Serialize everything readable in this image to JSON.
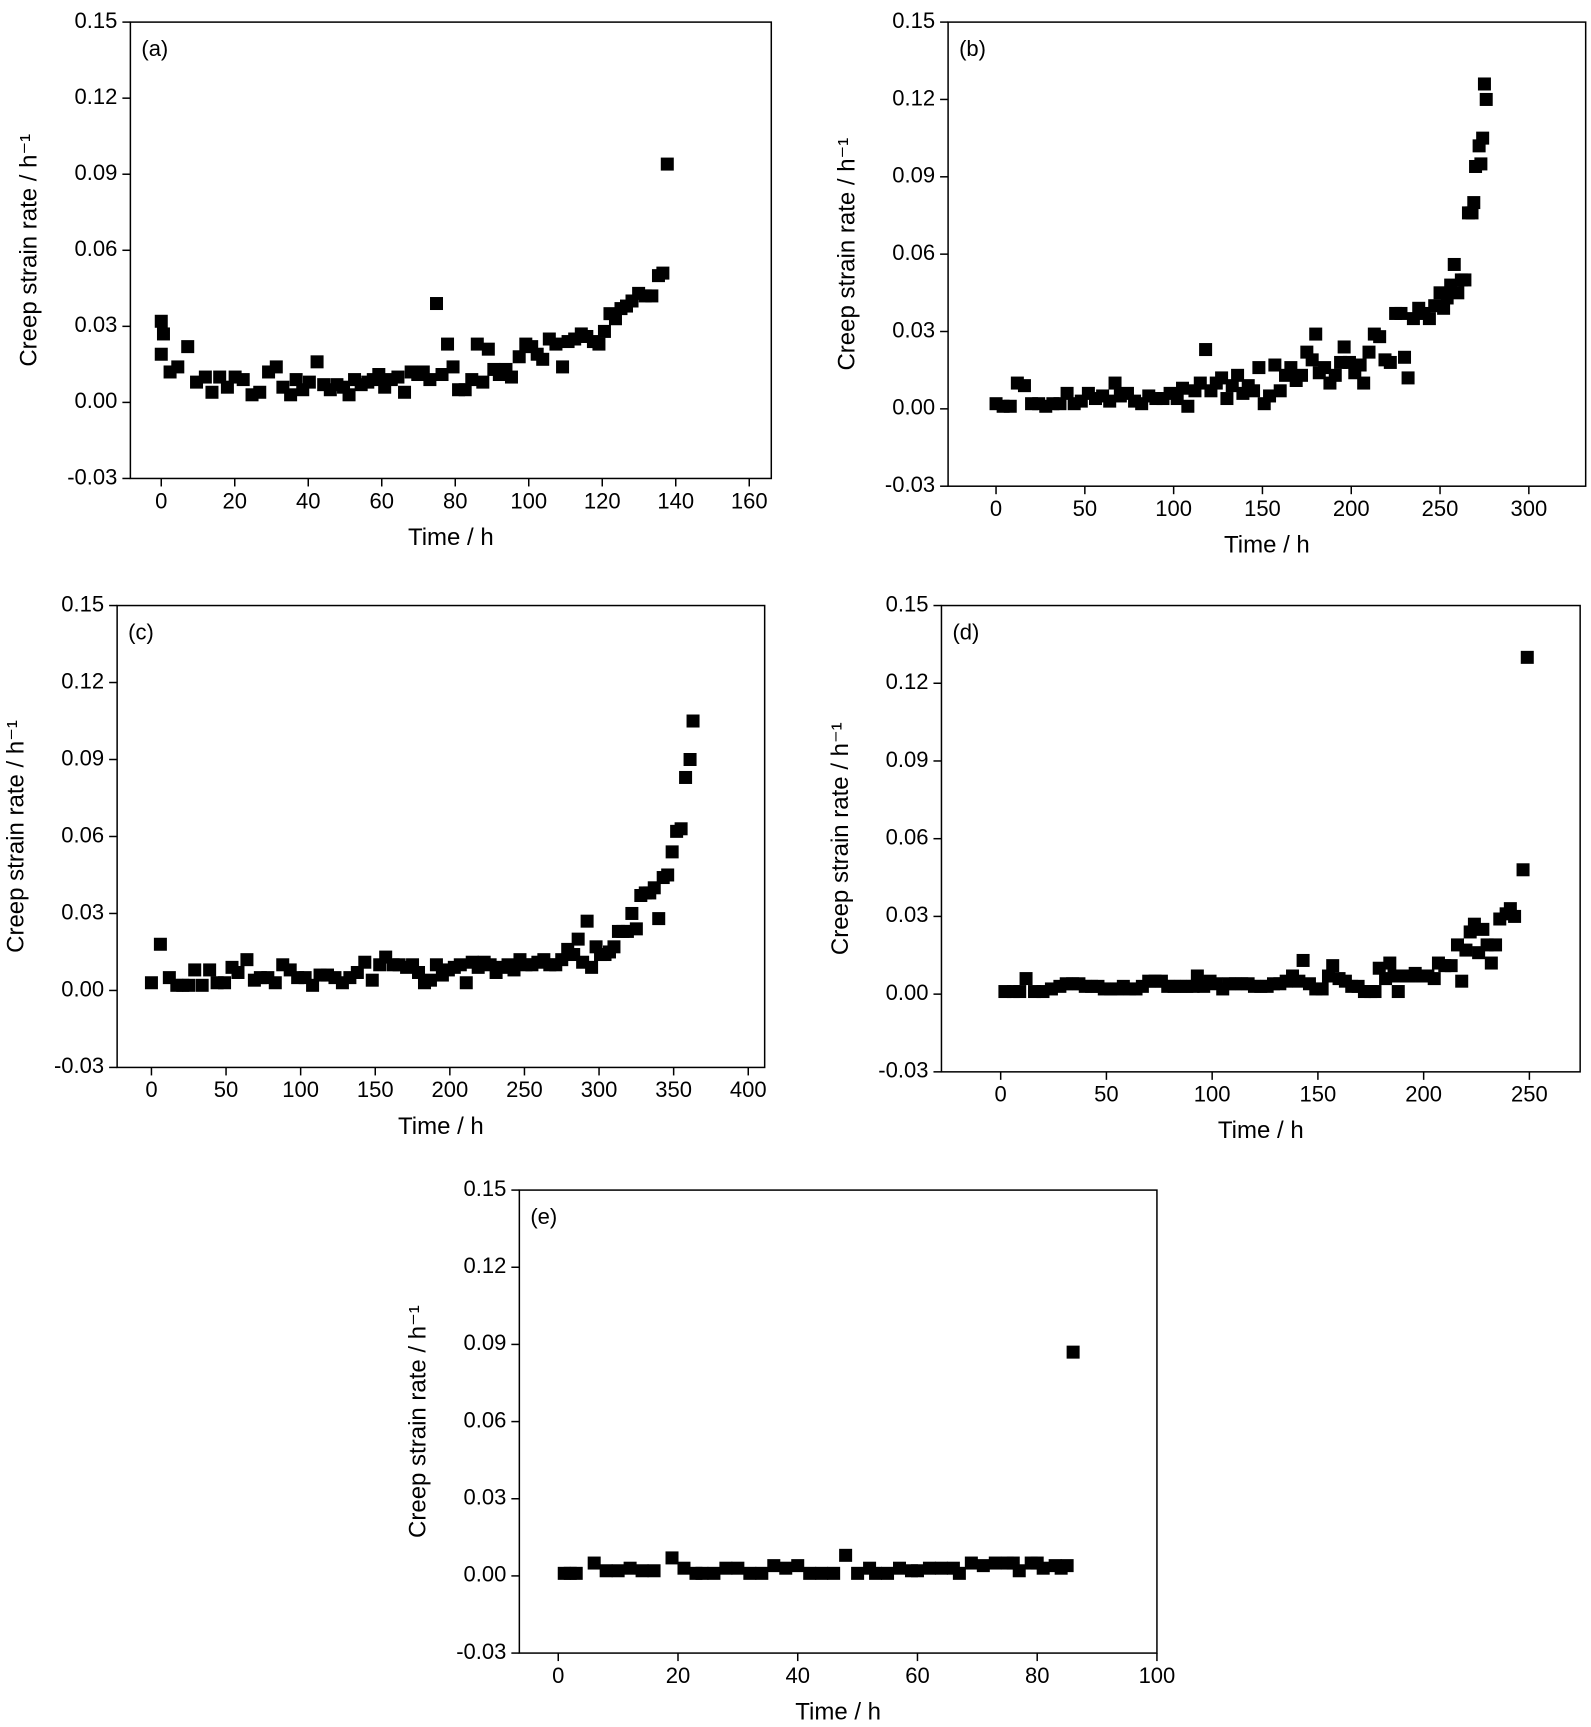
{
  "chart_data": [
    {
      "type": "scatter",
      "label": "(a)",
      "x_label": "Time / h",
      "y_label": "Creep strain rate / h⁻¹",
      "color": "#000000",
      "xlim": [
        -8.4,
        166
      ],
      "ylim": [
        -0.03,
        0.15
      ],
      "xticks": [
        0,
        20,
        40,
        60,
        80,
        100,
        120,
        140,
        160
      ],
      "yticks": [
        -0.03,
        {
          "value": 0,
          "label": "0.00"
        },
        0.03,
        0.06,
        0.09,
        0.12,
        0.15
      ],
      "x": [
        0,
        0,
        0.6,
        2.4,
        4.5,
        7.2,
        9.6,
        12,
        13.8,
        15.9,
        18,
        20.1,
        22.3,
        24.7,
        26.8,
        29.2,
        31.3,
        33.1,
        35.2,
        36.7,
        38.5,
        40.3,
        42.4,
        44.2,
        46,
        47.8,
        49.6,
        51.1,
        52.6,
        54.4,
        56.2,
        57.7,
        59.2,
        60.8,
        62.6,
        64.4,
        66.2,
        68,
        69.8,
        71.3,
        73.1,
        74.9,
        76.4,
        77.9,
        79.4,
        80.9,
        82.7,
        84.5,
        86,
        87.5,
        89,
        90.5,
        92,
        93.8,
        95.3,
        97.4,
        99.2,
        100.8,
        102.3,
        103.8,
        105.6,
        107.4,
        109.2,
        110.7,
        112.5,
        114.3,
        115.8,
        117.6,
        119.1,
        120.6,
        122.1,
        123.6,
        125.1,
        126.6,
        128.1,
        129.9,
        131.7,
        133.5,
        135.3,
        136.5,
        137.7
      ],
      "values": [
        0.032,
        0.019,
        0.027,
        0.012,
        0.014,
        0.022,
        0.008,
        0.01,
        0.004,
        0.01,
        0.006,
        0.01,
        0.009,
        0.003,
        0.004,
        0.012,
        0.014,
        0.006,
        0.003,
        0.009,
        0.005,
        0.008,
        0.016,
        0.007,
        0.005,
        0.007,
        0.006,
        0.003,
        0.009,
        0.007,
        0.008,
        0.009,
        0.011,
        0.006,
        0.009,
        0.01,
        0.004,
        0.012,
        0.011,
        0.012,
        0.009,
        0.039,
        0.011,
        0.023,
        0.014,
        0.005,
        0.005,
        0.009,
        0.023,
        0.008,
        0.021,
        0.013,
        0.011,
        0.013,
        0.01,
        0.018,
        0.023,
        0.022,
        0.019,
        0.017,
        0.025,
        0.023,
        0.014,
        0.024,
        0.025,
        0.027,
        0.026,
        0.024,
        0.023,
        0.028,
        0.035,
        0.033,
        0.037,
        0.038,
        0.04,
        0.043,
        0.042,
        0.042,
        0.05,
        0.051,
        0.094
      ]
    },
    {
      "type": "scatter",
      "label": "(b)",
      "x_label": "Time / h",
      "y_label": "Creep strain rate / h⁻¹",
      "color": "#000000",
      "xlim": [
        -27,
        332
      ],
      "ylim": [
        -0.03,
        0.15
      ],
      "xticks": [
        0,
        50,
        100,
        150,
        200,
        250,
        300
      ],
      "yticks": [
        -0.03,
        {
          "value": 0,
          "label": "0.00"
        },
        0.03,
        0.06,
        0.09,
        0.12,
        0.15
      ],
      "x": [
        0,
        4,
        8,
        12,
        16,
        20,
        24,
        28,
        32,
        36,
        40,
        44,
        48,
        52,
        56,
        60,
        64,
        67,
        70,
        74,
        78,
        82,
        86,
        90,
        94,
        98,
        102,
        105,
        108,
        112,
        115,
        118,
        121,
        124,
        127,
        130,
        133,
        136,
        139,
        142,
        145,
        148,
        151,
        154,
        157,
        160,
        163,
        166,
        169,
        172,
        175,
        178,
        180,
        182,
        185,
        188,
        191,
        194,
        196,
        199,
        202,
        205,
        207,
        210,
        213,
        216,
        219,
        222,
        225,
        228,
        230,
        232,
        235,
        238,
        241,
        244,
        247,
        250,
        252,
        254,
        256,
        258,
        260,
        262,
        264,
        266,
        268,
        269,
        270,
        272,
        273,
        274,
        275,
        276
      ],
      "values": [
        0.002,
        0.001,
        0.001,
        0.01,
        0.009,
        0.002,
        0.002,
        0.001,
        0.002,
        0.002,
        0.006,
        0.002,
        0.003,
        0.006,
        0.004,
        0.005,
        0.003,
        0.01,
        0.005,
        0.006,
        0.003,
        0.002,
        0.005,
        0.004,
        0.004,
        0.006,
        0.004,
        0.008,
        0.001,
        0.007,
        0.01,
        0.023,
        0.007,
        0.01,
        0.012,
        0.004,
        0.009,
        0.013,
        0.006,
        0.009,
        0.007,
        0.016,
        0.002,
        0.005,
        0.017,
        0.007,
        0.013,
        0.016,
        0.011,
        0.013,
        0.022,
        0.019,
        0.029,
        0.014,
        0.016,
        0.01,
        0.013,
        0.018,
        0.024,
        0.018,
        0.014,
        0.017,
        0.01,
        0.022,
        0.029,
        0.028,
        0.019,
        0.018,
        0.037,
        0.037,
        0.02,
        0.012,
        0.035,
        0.039,
        0.037,
        0.035,
        0.04,
        0.045,
        0.039,
        0.043,
        0.048,
        0.056,
        0.045,
        0.05,
        0.05,
        0.076,
        0.076,
        0.08,
        0.094,
        0.102,
        0.095,
        0.105,
        0.126,
        0.12
      ]
    },
    {
      "type": "scatter",
      "label": "(c)",
      "x_label": "Time / h",
      "y_label": "Creep strain rate / h⁻¹",
      "color": "#000000",
      "xlim": [
        -23,
        411
      ],
      "ylim": [
        -0.03,
        0.15
      ],
      "xticks": [
        0,
        50,
        100,
        150,
        200,
        250,
        300,
        350,
        400
      ],
      "yticks": [
        -0.03,
        {
          "value": 0,
          "label": "0.00"
        },
        0.03,
        0.06,
        0.09,
        0.12,
        0.15
      ],
      "x": [
        0,
        6,
        12,
        17,
        21,
        25,
        29,
        34,
        39,
        44,
        49,
        54,
        58,
        64,
        69,
        73,
        78,
        83,
        88,
        93,
        98,
        103,
        108,
        113,
        118,
        123,
        128,
        133,
        138,
        143,
        148,
        153,
        157,
        162,
        166,
        171,
        175,
        179,
        183,
        187,
        191,
        195,
        199,
        203,
        207,
        211,
        215,
        219,
        223,
        227,
        231,
        235,
        239,
        243,
        247,
        251,
        255,
        259,
        263,
        267,
        271,
        275,
        279,
        283,
        286,
        289,
        292,
        295,
        298,
        301,
        304,
        307,
        310,
        313,
        316,
        319,
        322,
        325,
        328,
        331,
        334,
        337,
        340,
        343,
        346,
        349,
        352,
        355,
        358,
        361,
        363
      ],
      "values": [
        0.003,
        0.018,
        0.005,
        0.002,
        0.002,
        0.002,
        0.008,
        0.002,
        0.008,
        0.003,
        0.003,
        0.009,
        0.007,
        0.012,
        0.004,
        0.005,
        0.005,
        0.003,
        0.01,
        0.008,
        0.005,
        0.005,
        0.002,
        0.006,
        0.006,
        0.005,
        0.003,
        0.005,
        0.007,
        0.011,
        0.004,
        0.01,
        0.013,
        0.01,
        0.01,
        0.009,
        0.01,
        0.007,
        0.003,
        0.004,
        0.01,
        0.006,
        0.008,
        0.009,
        0.01,
        0.003,
        0.011,
        0.009,
        0.011,
        0.01,
        0.007,
        0.009,
        0.01,
        0.008,
        0.012,
        0.01,
        0.01,
        0.011,
        0.012,
        0.01,
        0.01,
        0.012,
        0.016,
        0.014,
        0.02,
        0.011,
        0.027,
        0.009,
        0.017,
        0.014,
        0.014,
        0.015,
        0.017,
        0.023,
        0.023,
        0.023,
        0.03,
        0.024,
        0.037,
        0.038,
        0.038,
        0.04,
        0.028,
        0.044,
        0.045,
        0.054,
        0.062,
        0.063,
        0.083,
        0.09,
        0.105
      ]
    },
    {
      "type": "scatter",
      "label": "(d)",
      "x_label": "Time / h",
      "y_label": "Creep strain rate / h⁻¹",
      "color": "#000000",
      "xlim": [
        -28,
        274
      ],
      "ylim": [
        -0.03,
        0.15
      ],
      "xticks": [
        0,
        50,
        100,
        150,
        200,
        250
      ],
      "yticks": [
        -0.03,
        {
          "value": 0,
          "label": "0.00"
        },
        0.03,
        0.06,
        0.09,
        0.12,
        0.15
      ],
      "x": [
        2,
        6,
        9,
        12,
        16,
        20,
        24,
        28,
        31,
        34,
        37,
        40,
        43,
        46,
        49,
        52,
        55,
        58,
        61,
        64,
        67,
        70,
        73,
        76,
        79,
        82,
        85,
        88,
        91,
        93,
        96,
        99,
        102,
        105,
        108,
        111,
        114,
        117,
        120,
        123,
        126,
        129,
        132,
        135,
        138,
        141,
        143,
        146,
        149,
        152,
        155,
        157,
        160,
        163,
        166,
        169,
        172,
        175,
        177,
        179,
        182,
        184,
        186,
        188,
        190,
        193,
        196,
        199,
        202,
        205,
        207,
        210,
        213,
        216,
        218,
        220,
        222,
        224,
        226,
        228,
        230,
        232,
        234,
        236,
        239,
        241,
        243,
        247,
        249
      ],
      "values": [
        0.001,
        0.001,
        0.001,
        0.006,
        0.001,
        0.001,
        0.002,
        0.003,
        0.004,
        0.004,
        0.004,
        0.003,
        0.003,
        0.003,
        0.002,
        0.002,
        0.002,
        0.003,
        0.002,
        0.002,
        0.003,
        0.005,
        0.005,
        0.005,
        0.003,
        0.003,
        0.003,
        0.003,
        0.003,
        0.007,
        0.003,
        0.005,
        0.004,
        0.002,
        0.004,
        0.004,
        0.004,
        0.004,
        0.003,
        0.003,
        0.003,
        0.004,
        0.004,
        0.005,
        0.007,
        0.005,
        0.013,
        0.004,
        0.002,
        0.002,
        0.007,
        0.011,
        0.006,
        0.005,
        0.003,
        0.003,
        0.001,
        0.001,
        0.001,
        0.01,
        0.006,
        0.012,
        0.007,
        0.001,
        0.007,
        0.007,
        0.008,
        0.007,
        0.007,
        0.006,
        0.012,
        0.011,
        0.011,
        0.019,
        0.005,
        0.017,
        0.024,
        0.027,
        0.016,
        0.025,
        0.019,
        0.012,
        0.019,
        0.029,
        0.031,
        0.033,
        0.03,
        0.048,
        0.13
      ]
    },
    {
      "type": "scatter",
      "label": "(e)",
      "x_label": "Time / h",
      "y_label": "Creep strain rate / h⁻¹",
      "color": "#000000",
      "xlim": [
        -6.5,
        100
      ],
      "ylim": [
        -0.03,
        0.15
      ],
      "xticks": [
        0,
        20,
        40,
        60,
        80,
        100
      ],
      "yticks": [
        -0.03,
        {
          "value": 0,
          "label": "0.00"
        },
        0.03,
        0.06,
        0.09,
        0.12,
        0.15
      ],
      "x": [
        1,
        2,
        3,
        6,
        8,
        10,
        12,
        14,
        16,
        19,
        21,
        23,
        24,
        26,
        28,
        30,
        32,
        34,
        36,
        38,
        40,
        42,
        44,
        46,
        48,
        50,
        52,
        53,
        55,
        57,
        59,
        60,
        62,
        64,
        66,
        67,
        69,
        71,
        73,
        75,
        76,
        77,
        79,
        80,
        81,
        83,
        84,
        85,
        86
      ],
      "values": [
        0.001,
        0.001,
        0.001,
        0.005,
        0.002,
        0.002,
        0.003,
        0.002,
        0.002,
        0.007,
        0.003,
        0.001,
        0.001,
        0.001,
        0.003,
        0.003,
        0.001,
        0.001,
        0.004,
        0.003,
        0.004,
        0.001,
        0.001,
        0.001,
        0.008,
        0.001,
        0.003,
        0.001,
        0.001,
        0.003,
        0.002,
        0.002,
        0.003,
        0.003,
        0.003,
        0.001,
        0.005,
        0.004,
        0.005,
        0.005,
        0.005,
        0.002,
        0.005,
        0.005,
        0.003,
        0.004,
        0.003,
        0.004,
        0.087
      ]
    }
  ]
}
